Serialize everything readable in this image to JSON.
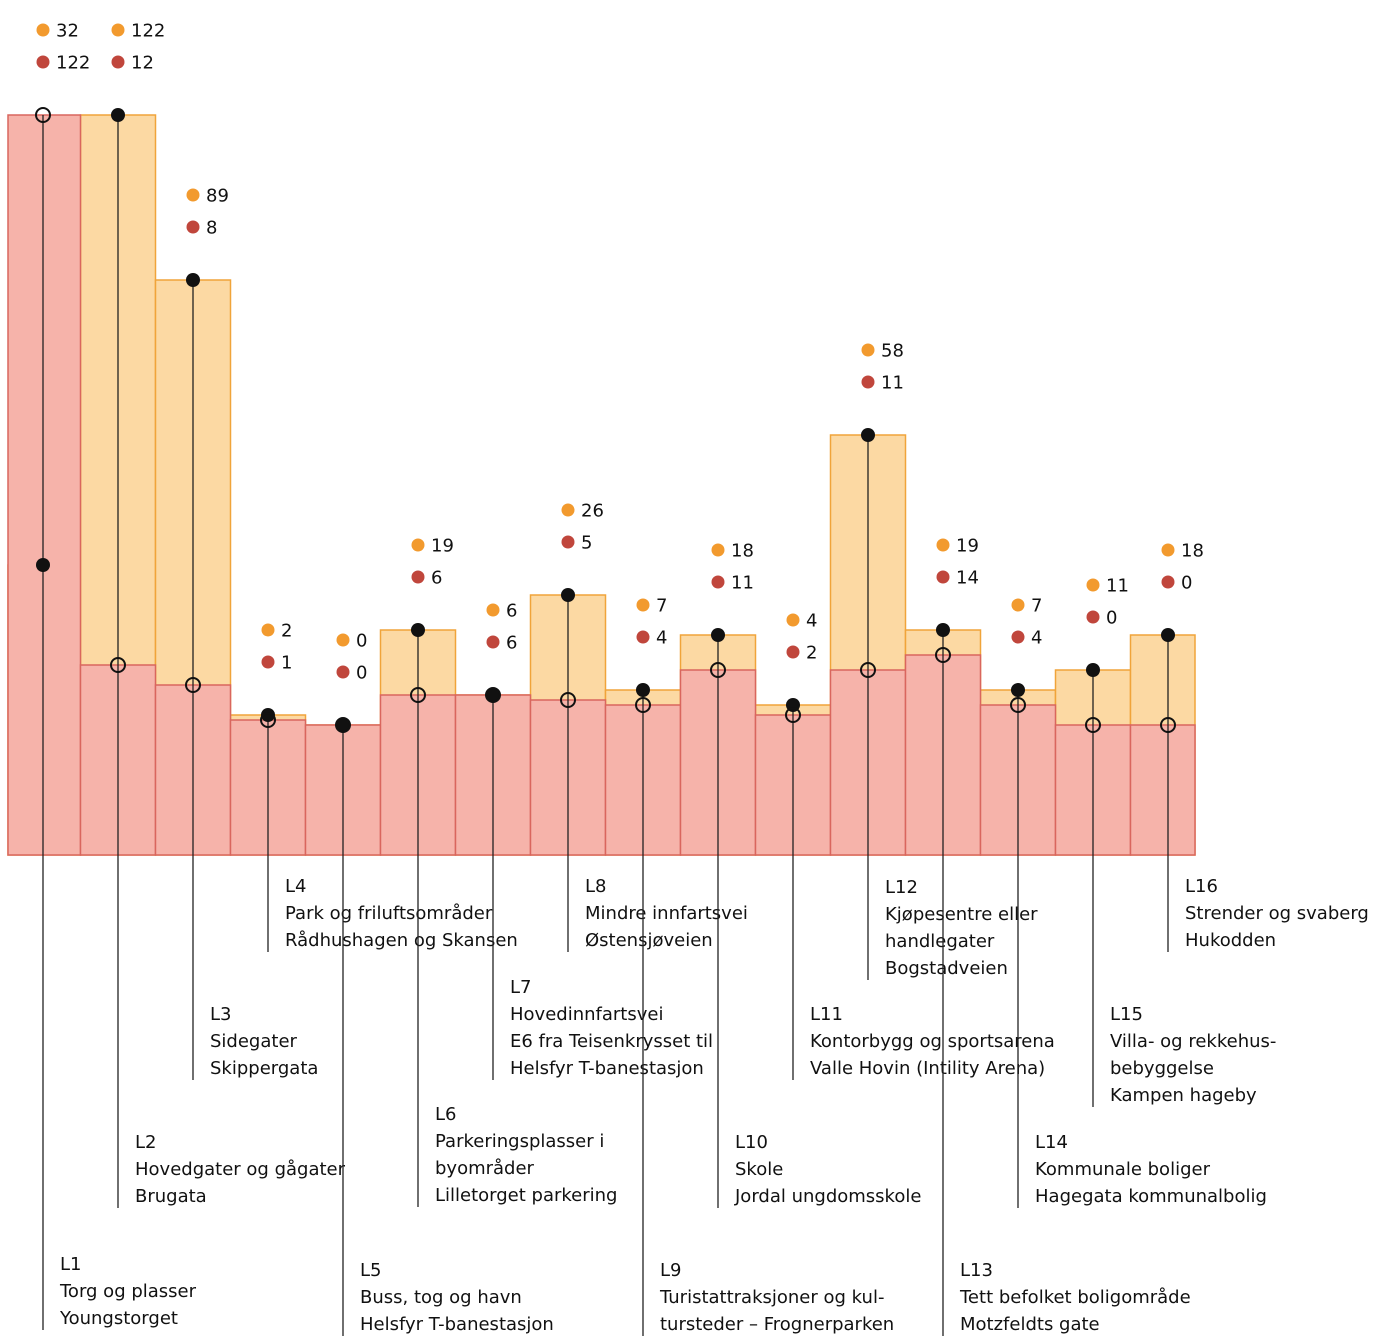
{
  "chart_data": {
    "type": "pile",
    "categories": [
      "L1",
      "L2",
      "L3",
      "L4",
      "L5",
      "L6",
      "L7",
      "L8",
      "L9",
      "L10",
      "L11",
      "L12",
      "L13",
      "L14",
      "L15",
      "L16"
    ],
    "category_lines": [
      [
        "Torg og plasser",
        "Youngstorget"
      ],
      [
        "Hovedgater og gågater",
        "Brugata"
      ],
      [
        "Sidegater",
        "Skippergata"
      ],
      [
        "Park og friluftsområder",
        "Rådhushagen og Skansen"
      ],
      [
        "Buss, tog og havn",
        "Helsfyr T-banestasjon"
      ],
      [
        "Parkeringsplasser i",
        "byområder",
        "Lilletorget parkering"
      ],
      [
        "Hovedinnfartsvei",
        "E6 fra Teisenkrysset til",
        "Helsfyr T-banestasjon"
      ],
      [
        "Mindre innfartsvei",
        "Østensjøveien"
      ],
      [
        "Turistattraksjoner og kul-",
        "tursteder – Frognerparken"
      ],
      [
        "Skole",
        "Jordal ungdomsskole"
      ],
      [
        "Kontorbygg og sportsarena",
        "Valle Hovin (Intility Arena)"
      ],
      [
        "Kjøpesentre eller",
        "handlegater",
        "Bogstadveien"
      ],
      [
        "Tett befolket boligområde",
        "Motzfeldts gate"
      ],
      [
        "Kommunale boliger",
        "Hagegata kommunalbolig"
      ],
      [
        "Villa- og rekkehus-",
        "bebyggelse",
        "Kampen hageby"
      ],
      [
        "Strender og svaberg",
        "Hukodden"
      ]
    ],
    "series": [
      {
        "color": "#f29a2e",
        "values": [
          32,
          122,
          89,
          2,
          0,
          19,
          6,
          26,
          7,
          18,
          4,
          58,
          19,
          7,
          11,
          18
        ]
      },
      {
        "color": "#c0463c",
        "values": [
          122,
          12,
          8,
          1,
          0,
          6,
          6,
          5,
          4,
          11,
          2,
          11,
          14,
          4,
          0,
          0
        ]
      }
    ]
  }
}
